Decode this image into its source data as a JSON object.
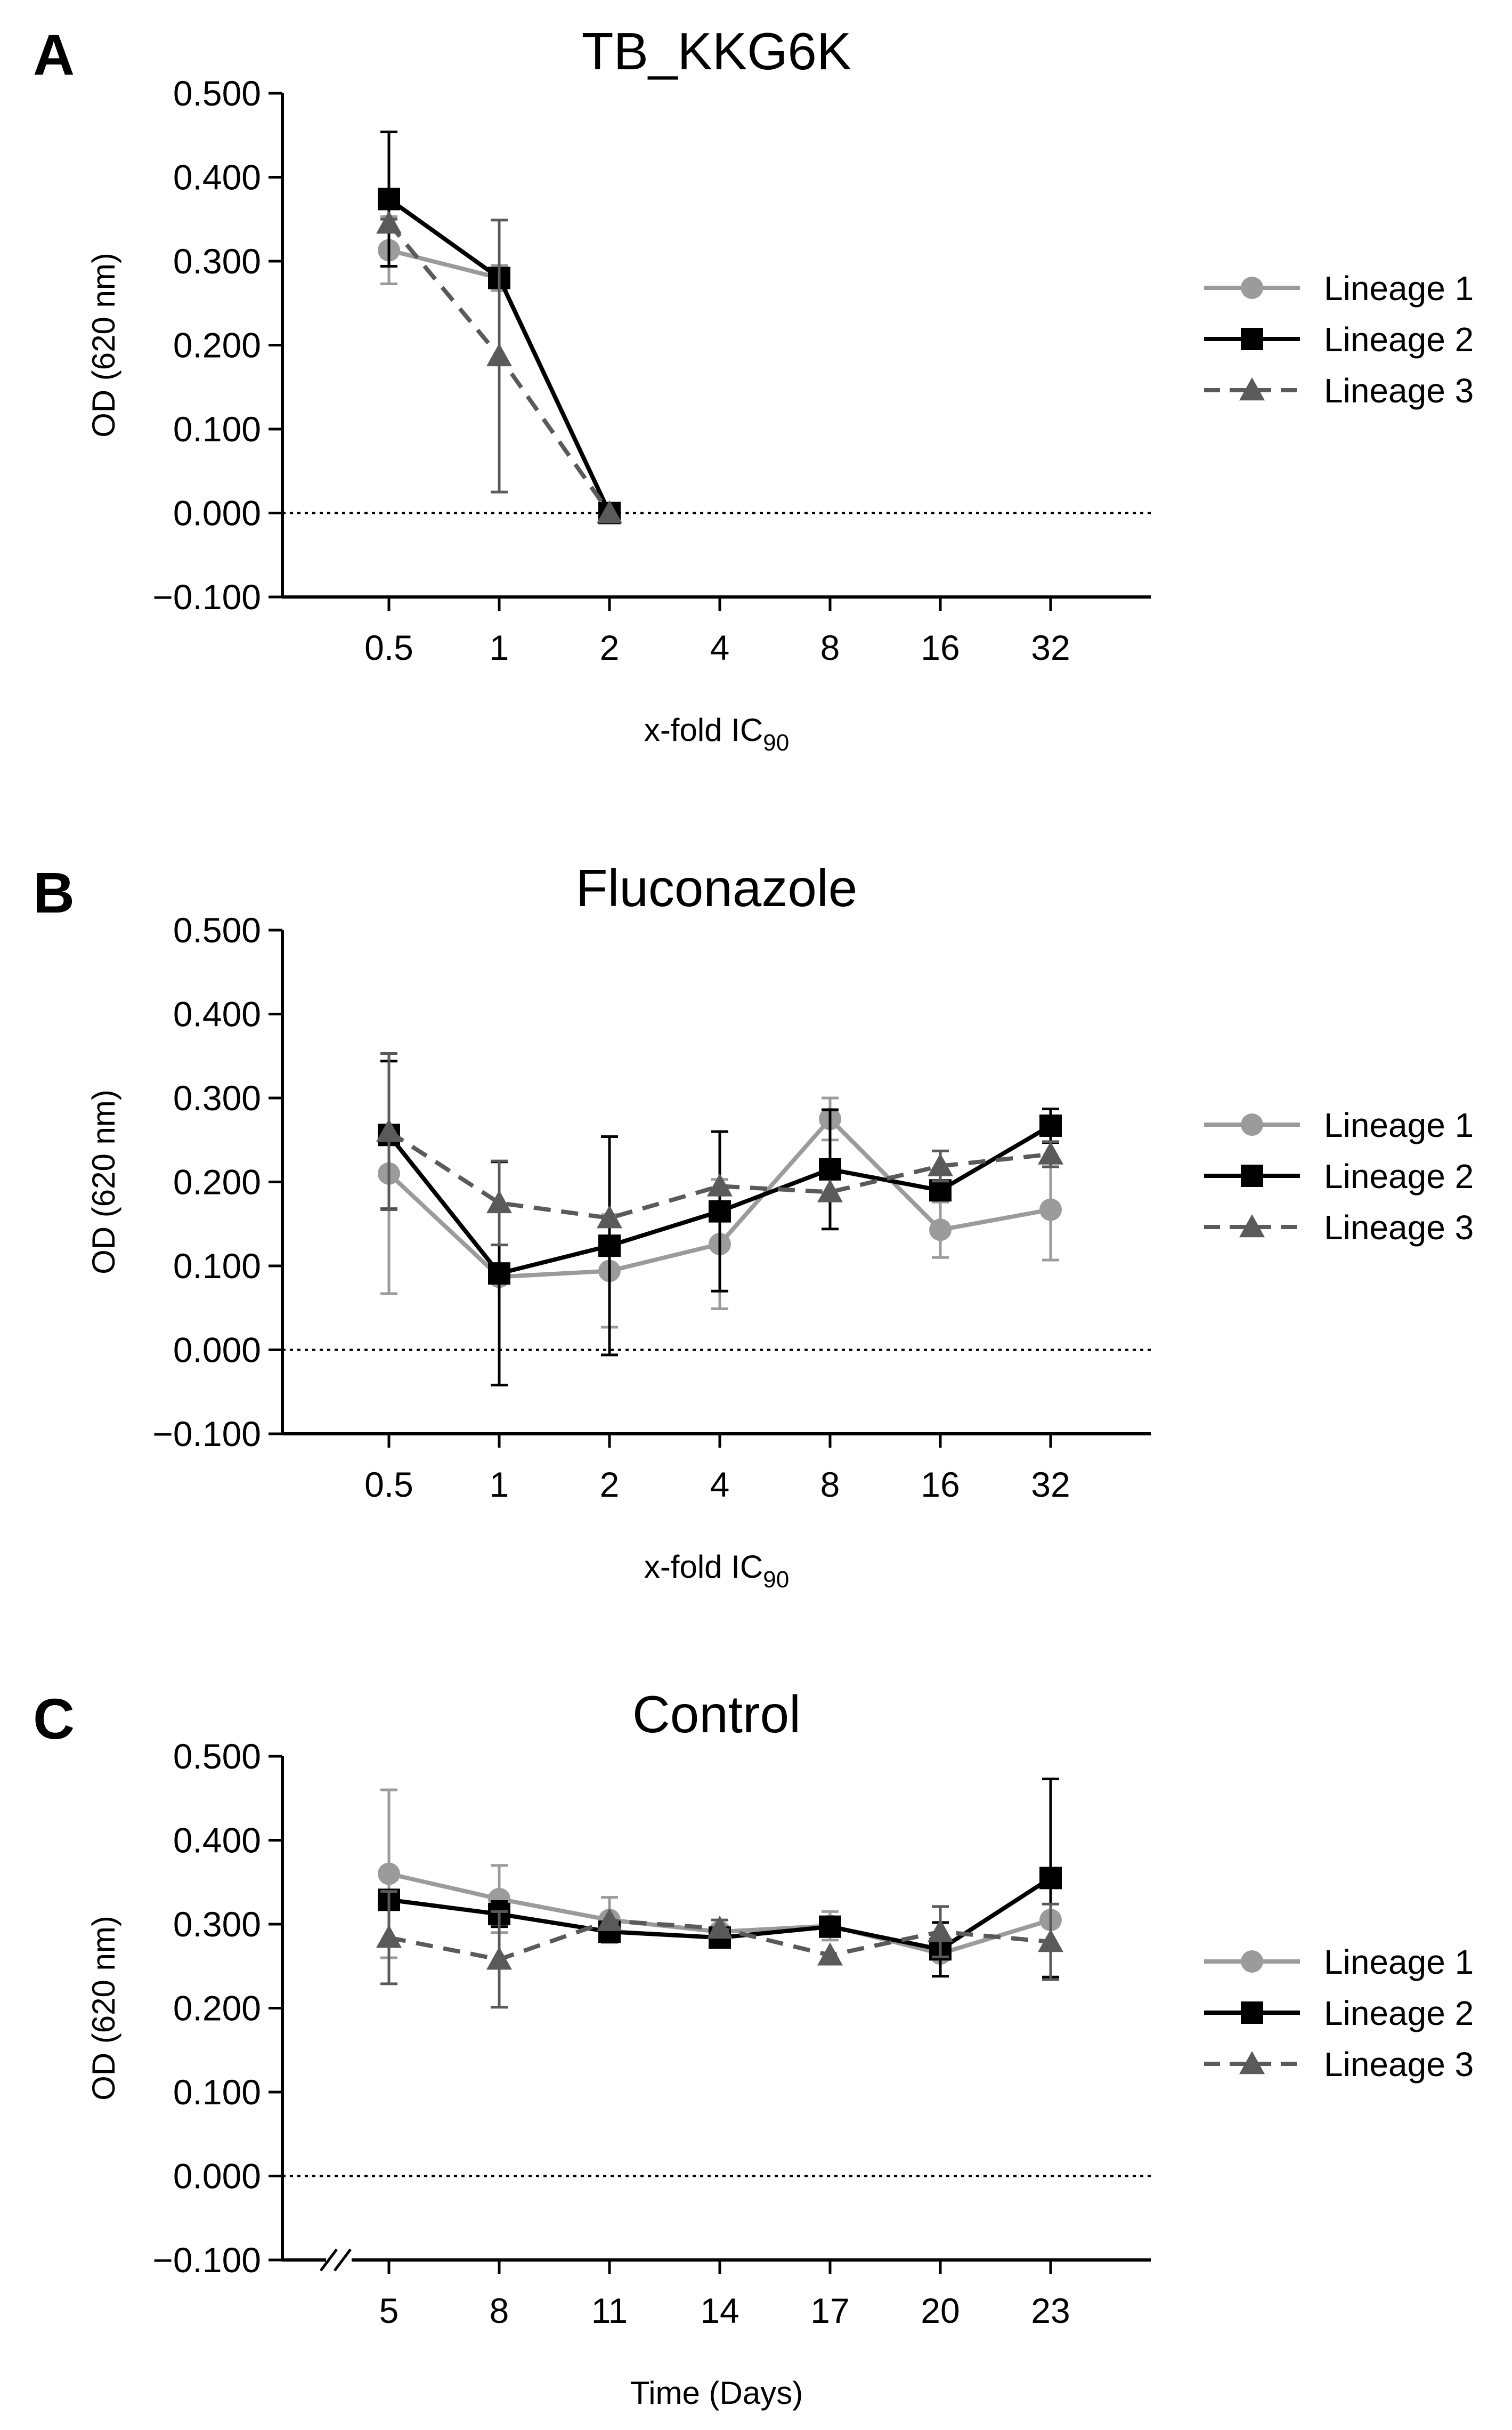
{
  "series_styles": {
    "Lineage 1": {
      "color": "#9b9b9b",
      "marker": "circle",
      "dash": ""
    },
    "Lineage 2": {
      "color": "#000000",
      "marker": "square",
      "dash": ""
    },
    "Lineage 3": {
      "color": "#5a5a5a",
      "marker": "triangle",
      "dash": "32,20"
    }
  },
  "chart_data": [
    {
      "type": "line",
      "panel": "A",
      "title": "TB_KKG6K",
      "xlabel": "x-fold IC",
      "xlabel_sub": "90",
      "ylabel": "OD (620 nm)",
      "categories": [
        "0.5",
        "1",
        "2",
        "4",
        "8",
        "16",
        "32"
      ],
      "ylim": [
        -0.1,
        0.5
      ],
      "yticks": [
        -0.1,
        0.0,
        0.1,
        0.2,
        0.3,
        0.4,
        0.5
      ],
      "ytick_labels": [
        "−0.100",
        "0.000",
        "0.100",
        "0.200",
        "0.300",
        "0.400",
        "0.500"
      ],
      "reference_line": 0,
      "axis_break": false,
      "legend": [
        "Lineage 1",
        "Lineage 2",
        "Lineage 3"
      ],
      "series": [
        {
          "name": "Lineage 1",
          "values": [
            0.313,
            0.28,
            0.0,
            null,
            null,
            null,
            null
          ],
          "errors": [
            0.04,
            0.015,
            0.0,
            null,
            null,
            null,
            null
          ]
        },
        {
          "name": "Lineage 2",
          "values": [
            0.374,
            0.28,
            0.0,
            null,
            null,
            null,
            null
          ],
          "errors": [
            0.08,
            0.01,
            0.0,
            null,
            null,
            null,
            null
          ]
        },
        {
          "name": "Lineage 3",
          "values": [
            0.345,
            0.187,
            0.0,
            null,
            null,
            null,
            null
          ],
          "errors": [
            0.005,
            0.162,
            0.0,
            null,
            null,
            null,
            null
          ]
        }
      ]
    },
    {
      "type": "line",
      "panel": "B",
      "title": "Fluconazole",
      "xlabel": "x-fold IC",
      "xlabel_sub": "90",
      "ylabel": "OD (620 nm)",
      "categories": [
        "0.5",
        "1",
        "2",
        "4",
        "8",
        "16",
        "32"
      ],
      "ylim": [
        -0.1,
        0.5
      ],
      "yticks": [
        -0.1,
        0.0,
        0.1,
        0.2,
        0.3,
        0.4,
        0.5
      ],
      "ytick_labels": [
        "−0.100",
        "0.000",
        "0.100",
        "0.200",
        "0.300",
        "0.400",
        "0.500"
      ],
      "reference_line": 0,
      "axis_break": false,
      "legend": [
        "Lineage 1",
        "Lineage 2",
        "Lineage 3"
      ],
      "series": [
        {
          "name": "Lineage 1",
          "values": [
            0.21,
            0.087,
            0.094,
            0.126,
            0.275,
            0.143,
            0.167
          ],
          "errors": [
            0.143,
            0.0,
            0.067,
            0.077,
            0.025,
            0.033,
            0.06
          ]
        },
        {
          "name": "Lineage 2",
          "values": [
            0.256,
            0.091,
            0.124,
            0.165,
            0.215,
            0.19,
            0.267
          ],
          "errors": [
            0.088,
            0.133,
            0.13,
            0.095,
            0.071,
            0.0,
            0.02
          ]
        },
        {
          "name": "Lineage 3",
          "values": [
            0.26,
            0.175,
            0.157,
            0.195,
            0.188,
            0.219,
            0.233
          ],
          "errors": [
            0.093,
            0.05,
            0.0,
            0.0,
            0.0,
            0.018,
            0.015
          ]
        }
      ]
    },
    {
      "type": "line",
      "panel": "C",
      "title": "Control",
      "xlabel": "Time (Days)",
      "xlabel_sub": "",
      "ylabel": "OD (620 nm)",
      "categories": [
        "5",
        "8",
        "11",
        "14",
        "17",
        "20",
        "23"
      ],
      "ylim": [
        -0.1,
        0.5
      ],
      "yticks": [
        -0.1,
        0.0,
        0.1,
        0.2,
        0.3,
        0.4,
        0.5
      ],
      "ytick_labels": [
        "−0.100",
        "0.000",
        "0.100",
        "0.200",
        "0.300",
        "0.400",
        "0.500"
      ],
      "reference_line": 0,
      "axis_break": true,
      "legend": [
        "Lineage 1",
        "Lineage 2",
        "Lineage 3"
      ],
      "series": [
        {
          "name": "Lineage 1",
          "values": [
            0.36,
            0.33,
            0.305,
            0.291,
            0.298,
            0.265,
            0.305
          ],
          "errors": [
            0.1,
            0.04,
            0.027,
            0.0,
            0.017,
            0.0,
            0.0
          ]
        },
        {
          "name": "Lineage 2",
          "values": [
            0.329,
            0.312,
            0.291,
            0.284,
            0.297,
            0.27,
            0.355
          ],
          "errors": [
            0.0,
            0.015,
            0.0,
            0.0,
            0.0,
            0.032,
            0.118
          ]
        },
        {
          "name": "Lineage 3",
          "values": [
            0.284,
            0.258,
            0.304,
            0.295,
            0.263,
            0.291,
            0.279
          ],
          "errors": [
            0.055,
            0.057,
            0.0,
            0.01,
            0.0,
            0.03,
            0.045
          ]
        }
      ]
    }
  ]
}
